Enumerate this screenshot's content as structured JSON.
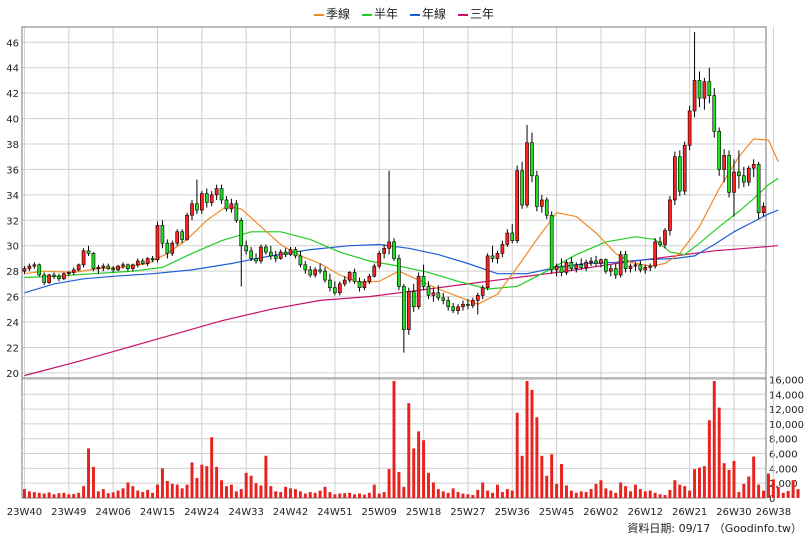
{
  "chart_data": {
    "type": "candlestick",
    "legend": {
      "placement": "top-center",
      "items": [
        {
          "name": "季線",
          "color": "#f08a24"
        },
        {
          "name": "半年",
          "color": "#22cc22"
        },
        {
          "name": "年線",
          "color": "#1f5fd6"
        },
        {
          "name": "三年",
          "color": "#c8106a"
        }
      ]
    },
    "price_axis": {
      "ylim": [
        19.6,
        47.2
      ],
      "ticks": [
        20,
        22,
        24,
        26,
        28,
        30,
        32,
        34,
        36,
        38,
        40,
        42,
        44,
        46
      ]
    },
    "volume_axis": {
      "ylim": [
        0,
        16200
      ],
      "ticks": [
        0,
        2000,
        4000,
        6000,
        8000,
        10000,
        12000,
        14000,
        16000
      ],
      "tick_labels": [
        "0",
        "2,000",
        "4,000",
        "6,000",
        "8,000",
        "10,000",
        "12,000",
        "14,000",
        "16,000"
      ]
    },
    "x_labels": [
      {
        "label": "23W40",
        "index": 0
      },
      {
        "label": "23W49",
        "index": 9
      },
      {
        "label": "24W06",
        "index": 18
      },
      {
        "label": "24W15",
        "index": 27
      },
      {
        "label": "24W24",
        "index": 36
      },
      {
        "label": "24W33",
        "index": 45
      },
      {
        "label": "24W42",
        "index": 54
      },
      {
        "label": "24W51",
        "index": 63
      },
      {
        "label": "25W09",
        "index": 72
      },
      {
        "label": "25W18",
        "index": 81
      },
      {
        "label": "25W27",
        "index": 90
      },
      {
        "label": "25W36",
        "index": 99
      },
      {
        "label": "25W45",
        "index": 108
      },
      {
        "label": "26W02",
        "index": 117
      },
      {
        "label": "26W12",
        "index": 126
      },
      {
        "label": "26W21",
        "index": 135
      },
      {
        "label": "26W30",
        "index": 144
      },
      {
        "label": "26W38",
        "index": 152
      }
    ],
    "grid": true,
    "footer": "資料日期: 09/17 （Goodinfo.tw）",
    "ohlc": [
      [
        28.0,
        28.4,
        27.8,
        28.2
      ],
      [
        28.2,
        28.6,
        28.0,
        28.4
      ],
      [
        28.4,
        28.7,
        28.2,
        28.5
      ],
      [
        28.5,
        28.6,
        27.6,
        27.7
      ],
      [
        27.7,
        27.9,
        26.9,
        27.1
      ],
      [
        27.1,
        27.8,
        27.0,
        27.7
      ],
      [
        27.7,
        27.9,
        27.4,
        27.6
      ],
      [
        27.6,
        27.8,
        27.2,
        27.4
      ],
      [
        27.4,
        27.9,
        27.3,
        27.8
      ],
      [
        27.8,
        28.0,
        27.6,
        27.9
      ],
      [
        27.9,
        28.3,
        27.7,
        28.1
      ],
      [
        28.1,
        28.6,
        28.0,
        28.5
      ],
      [
        28.5,
        29.8,
        28.3,
        29.6
      ],
      [
        29.6,
        30.0,
        29.2,
        29.4
      ],
      [
        29.4,
        29.5,
        28.0,
        28.2
      ],
      [
        28.2,
        28.5,
        27.8,
        28.3
      ],
      [
        28.3,
        28.6,
        28.0,
        28.4
      ],
      [
        28.4,
        28.6,
        28.1,
        28.2
      ],
      [
        28.2,
        28.4,
        27.9,
        28.1
      ],
      [
        28.1,
        28.5,
        28.0,
        28.4
      ],
      [
        28.4,
        28.7,
        28.2,
        28.5
      ],
      [
        28.5,
        28.6,
        28.0,
        28.2
      ],
      [
        28.2,
        28.6,
        28.0,
        28.5
      ],
      [
        28.5,
        29.0,
        28.3,
        28.8
      ],
      [
        28.8,
        29.0,
        28.5,
        28.6
      ],
      [
        28.6,
        29.1,
        28.4,
        29.0
      ],
      [
        29.0,
        29.2,
        28.7,
        28.9
      ],
      [
        28.9,
        31.9,
        28.7,
        31.6
      ],
      [
        31.6,
        32.0,
        29.8,
        30.2
      ],
      [
        30.2,
        30.5,
        29.0,
        29.4
      ],
      [
        29.4,
        30.4,
        29.2,
        30.2
      ],
      [
        30.2,
        31.3,
        30.0,
        31.1
      ],
      [
        31.1,
        31.3,
        30.2,
        30.5
      ],
      [
        30.5,
        32.6,
        30.4,
        32.4
      ],
      [
        32.4,
        33.6,
        32.0,
        33.3
      ],
      [
        33.3,
        35.2,
        32.5,
        32.8
      ],
      [
        32.8,
        34.3,
        32.5,
        34.1
      ],
      [
        34.1,
        34.5,
        33.0,
        33.4
      ],
      [
        33.4,
        34.3,
        33.1,
        34.0
      ],
      [
        34.0,
        34.8,
        33.6,
        34.5
      ],
      [
        34.5,
        34.8,
        33.3,
        33.6
      ],
      [
        33.6,
        33.9,
        32.7,
        32.9
      ],
      [
        32.9,
        33.7,
        32.6,
        33.3
      ],
      [
        33.3,
        33.6,
        31.8,
        32.0
      ],
      [
        32.0,
        32.2,
        26.8,
        30.0
      ],
      [
        30.0,
        30.4,
        29.3,
        29.6
      ],
      [
        29.6,
        29.9,
        28.8,
        29.0
      ],
      [
        29.0,
        29.4,
        28.6,
        28.8
      ],
      [
        28.8,
        30.1,
        28.6,
        29.9
      ],
      [
        29.9,
        30.1,
        29.3,
        29.5
      ],
      [
        29.5,
        30.0,
        28.9,
        29.2
      ],
      [
        29.2,
        29.6,
        28.7,
        29.0
      ],
      [
        29.0,
        29.7,
        28.9,
        29.5
      ],
      [
        29.5,
        29.8,
        29.1,
        29.3
      ],
      [
        29.3,
        29.9,
        29.2,
        29.7
      ],
      [
        29.7,
        29.9,
        29.0,
        29.2
      ],
      [
        29.2,
        29.6,
        28.3,
        28.5
      ],
      [
        28.5,
        28.8,
        27.8,
        28.1
      ],
      [
        28.1,
        28.4,
        27.5,
        27.7
      ],
      [
        27.7,
        28.3,
        27.5,
        28.1
      ],
      [
        28.1,
        28.6,
        27.8,
        28.0
      ],
      [
        28.0,
        28.3,
        27.1,
        27.3
      ],
      [
        27.3,
        27.8,
        26.4,
        26.7
      ],
      [
        26.7,
        27.2,
        26.1,
        26.3
      ],
      [
        26.3,
        27.2,
        26.1,
        27.0
      ],
      [
        27.0,
        27.6,
        26.8,
        27.3
      ],
      [
        27.3,
        28.0,
        27.1,
        27.9
      ],
      [
        27.9,
        28.2,
        27.0,
        27.2
      ],
      [
        27.2,
        27.5,
        26.4,
        26.7
      ],
      [
        26.7,
        27.4,
        26.5,
        27.2
      ],
      [
        27.2,
        27.8,
        27.0,
        27.6
      ],
      [
        27.6,
        28.6,
        27.5,
        28.4
      ],
      [
        28.4,
        29.6,
        28.2,
        29.4
      ],
      [
        29.4,
        30.1,
        29.0,
        29.8
      ],
      [
        29.8,
        35.9,
        29.3,
        30.3
      ],
      [
        30.3,
        30.6,
        28.8,
        29.0
      ],
      [
        29.0,
        29.3,
        26.5,
        26.8
      ],
      [
        26.8,
        27.0,
        21.6,
        23.4
      ],
      [
        23.4,
        26.7,
        23.0,
        26.4
      ],
      [
        26.4,
        27.0,
        24.8,
        25.2
      ],
      [
        25.2,
        27.9,
        25.0,
        27.6
      ],
      [
        27.6,
        28.5,
        26.5,
        26.8
      ],
      [
        26.8,
        27.2,
        25.8,
        26.1
      ],
      [
        26.1,
        26.7,
        25.6,
        26.3
      ],
      [
        26.3,
        26.9,
        25.7,
        25.9
      ],
      [
        25.9,
        26.3,
        25.4,
        25.7
      ],
      [
        25.7,
        26.0,
        24.9,
        25.2
      ],
      [
        25.2,
        25.5,
        24.7,
        24.9
      ],
      [
        24.9,
        25.4,
        24.6,
        25.2
      ],
      [
        25.2,
        25.7,
        24.9,
        25.4
      ],
      [
        25.4,
        25.8,
        25.0,
        25.3
      ],
      [
        25.3,
        25.9,
        25.1,
        25.7
      ],
      [
        25.7,
        26.3,
        24.6,
        26.1
      ],
      [
        26.1,
        26.9,
        25.8,
        26.7
      ],
      [
        26.7,
        29.4,
        26.5,
        29.2
      ],
      [
        29.2,
        30.0,
        28.7,
        29.0
      ],
      [
        29.0,
        29.6,
        28.6,
        29.4
      ],
      [
        29.4,
        30.4,
        29.1,
        30.1
      ],
      [
        30.1,
        31.3,
        29.9,
        31.0
      ],
      [
        31.0,
        31.7,
        30.2,
        30.4
      ],
      [
        30.4,
        36.3,
        30.2,
        35.9
      ],
      [
        35.9,
        36.6,
        32.9,
        33.2
      ],
      [
        33.2,
        39.5,
        33.0,
        38.1
      ],
      [
        38.1,
        38.9,
        35.0,
        35.5
      ],
      [
        35.5,
        35.9,
        32.7,
        33.1
      ],
      [
        33.1,
        34.0,
        32.6,
        33.6
      ],
      [
        33.6,
        33.8,
        32.1,
        32.4
      ],
      [
        32.4,
        32.7,
        27.8,
        28.1
      ],
      [
        28.1,
        28.6,
        27.6,
        28.4
      ],
      [
        28.4,
        29.0,
        27.6,
        27.9
      ],
      [
        27.9,
        28.9,
        27.7,
        28.7
      ],
      [
        28.7,
        29.1,
        28.0,
        28.2
      ],
      [
        28.2,
        28.7,
        27.9,
        28.5
      ],
      [
        28.5,
        29.0,
        28.1,
        28.3
      ],
      [
        28.3,
        28.9,
        28.0,
        28.7
      ],
      [
        28.7,
        29.1,
        28.4,
        28.8
      ],
      [
        28.8,
        29.2,
        28.4,
        28.6
      ],
      [
        28.6,
        29.0,
        28.3,
        28.9
      ],
      [
        28.9,
        29.0,
        27.8,
        28.0
      ],
      [
        28.0,
        28.5,
        27.6,
        28.2
      ],
      [
        28.2,
        28.6,
        27.4,
        27.7
      ],
      [
        27.7,
        29.6,
        27.5,
        29.3
      ],
      [
        29.3,
        29.6,
        27.9,
        28.2
      ],
      [
        28.2,
        28.6,
        27.9,
        28.4
      ],
      [
        28.4,
        28.7,
        28.0,
        28.5
      ],
      [
        28.5,
        28.8,
        27.9,
        28.1
      ],
      [
        28.1,
        28.5,
        27.8,
        28.3
      ],
      [
        28.3,
        28.6,
        28.0,
        28.4
      ],
      [
        28.4,
        30.6,
        28.2,
        30.3
      ],
      [
        30.3,
        30.7,
        29.9,
        30.1
      ],
      [
        30.1,
        31.4,
        29.8,
        31.2
      ],
      [
        31.2,
        33.9,
        30.8,
        33.6
      ],
      [
        33.6,
        37.4,
        33.2,
        37.0
      ],
      [
        37.0,
        37.5,
        33.9,
        34.3
      ],
      [
        34.3,
        38.2,
        34.0,
        37.9
      ],
      [
        37.9,
        41.0,
        37.5,
        40.6
      ],
      [
        40.6,
        46.8,
        40.1,
        43.0
      ],
      [
        43.0,
        43.7,
        40.9,
        41.6
      ],
      [
        41.6,
        43.2,
        40.7,
        42.9
      ],
      [
        42.9,
        44.0,
        41.2,
        41.8
      ],
      [
        41.8,
        42.4,
        38.5,
        39.0
      ],
      [
        39.0,
        39.3,
        35.5,
        36.0
      ],
      [
        36.0,
        37.6,
        35.0,
        37.1
      ],
      [
        37.1,
        37.5,
        33.8,
        34.2
      ],
      [
        34.2,
        36.8,
        32.3,
        35.8
      ],
      [
        35.8,
        37.5,
        34.5,
        35.5
      ],
      [
        35.5,
        36.2,
        34.6,
        35.0
      ],
      [
        35.0,
        36.3,
        34.7,
        36.1
      ],
      [
        36.1,
        36.8,
        35.4,
        36.4
      ],
      [
        36.4,
        36.6,
        32.1,
        32.6
      ],
      [
        32.6,
        33.4,
        32.3,
        33.1
      ]
    ],
    "volume": [
      1200,
      900,
      800,
      700,
      600,
      750,
      500,
      650,
      700,
      500,
      550,
      700,
      1600,
      6700,
      4200,
      900,
      1200,
      650,
      750,
      1000,
      1300,
      2100,
      1600,
      1000,
      800,
      1100,
      700,
      1800,
      4000,
      2300,
      1900,
      1800,
      1300,
      1800,
      4800,
      2700,
      4500,
      4300,
      8200,
      4200,
      2400,
      1600,
      1800,
      900,
      1200,
      3400,
      3000,
      2000,
      1700,
      5700,
      1600,
      900,
      800,
      1500,
      1300,
      1200,
      900,
      600,
      800,
      700,
      1000,
      1500,
      800,
      500,
      600,
      650,
      700,
      500,
      600,
      450,
      700,
      1800,
      600,
      800,
      3900,
      15800,
      3500,
      1500,
      12800,
      6700,
      9000,
      7800,
      3400,
      2100,
      1200,
      900,
      700,
      1300,
      800,
      600,
      500,
      400,
      1100,
      2100,
      1000,
      700,
      1800,
      800,
      1200,
      1000,
      11500,
      5700,
      15800,
      14600,
      10900,
      5700,
      3000,
      5900,
      1900,
      4600,
      1700,
      1000,
      700,
      900,
      800,
      1200,
      1900,
      2400,
      1300,
      1000,
      700,
      2100,
      1600,
      900,
      1800,
      1200,
      900,
      1000,
      700,
      500,
      400,
      1100,
      2400,
      1800,
      1600,
      1000,
      3900,
      4100,
      4300,
      10500,
      15800,
      12200,
      4700,
      3800,
      5000,
      800,
      1900,
      2900,
      5600,
      1800,
      1000,
      3300,
      2500,
      1500,
      700,
      950,
      2400,
      1200
    ],
    "ma_quarterly": [
      [
        0,
        27.8
      ],
      [
        4,
        28.0
      ],
      [
        10,
        27.9
      ],
      [
        15,
        28.2
      ],
      [
        20,
        28.3
      ],
      [
        25,
        28.6
      ],
      [
        29,
        29.4
      ],
      [
        33,
        30.5
      ],
      [
        37,
        32.0
      ],
      [
        41,
        33.1
      ],
      [
        44,
        32.9
      ],
      [
        48,
        31.5
      ],
      [
        52,
        30.1
      ],
      [
        56,
        29.2
      ],
      [
        60,
        28.6
      ],
      [
        64,
        27.7
      ],
      [
        68,
        27.1
      ],
      [
        72,
        27.2
      ],
      [
        76,
        28.0
      ],
      [
        80,
        27.3
      ],
      [
        84,
        26.6
      ],
      [
        88,
        26.0
      ],
      [
        92,
        25.4
      ],
      [
        96,
        26.2
      ],
      [
        100,
        28.3
      ],
      [
        104,
        30.5
      ],
      [
        108,
        32.6
      ],
      [
        112,
        32.3
      ],
      [
        116,
        31.0
      ],
      [
        120,
        29.4
      ],
      [
        123,
        28.7
      ],
      [
        127,
        28.4
      ],
      [
        130,
        28.6
      ],
      [
        133,
        29.4
      ],
      [
        137,
        31.5
      ],
      [
        141,
        34.5
      ],
      [
        145,
        37.0
      ],
      [
        148,
        38.4
      ],
      [
        151,
        38.3
      ],
      [
        153,
        36.6
      ]
    ],
    "ma_half_year": [
      [
        0,
        27.5
      ],
      [
        6,
        27.6
      ],
      [
        14,
        27.8
      ],
      [
        22,
        28.0
      ],
      [
        28,
        28.3
      ],
      [
        34,
        29.4
      ],
      [
        40,
        30.4
      ],
      [
        46,
        31.1
      ],
      [
        52,
        31.1
      ],
      [
        58,
        30.5
      ],
      [
        64,
        29.5
      ],
      [
        70,
        28.8
      ],
      [
        76,
        28.4
      ],
      [
        82,
        27.9
      ],
      [
        88,
        27.2
      ],
      [
        94,
        26.6
      ],
      [
        100,
        26.8
      ],
      [
        106,
        28.0
      ],
      [
        112,
        29.3
      ],
      [
        118,
        30.3
      ],
      [
        124,
        30.7
      ],
      [
        128,
        30.5
      ],
      [
        131,
        29.5
      ],
      [
        134,
        29.3
      ],
      [
        137,
        30.2
      ],
      [
        141,
        31.5
      ],
      [
        145,
        32.7
      ],
      [
        148,
        33.7
      ],
      [
        151,
        34.8
      ],
      [
        153,
        35.3
      ]
    ],
    "ma_yearly": [
      [
        0,
        26.3
      ],
      [
        6,
        27.0
      ],
      [
        12,
        27.4
      ],
      [
        18,
        27.6
      ],
      [
        26,
        27.8
      ],
      [
        34,
        28.1
      ],
      [
        42,
        28.6
      ],
      [
        50,
        29.2
      ],
      [
        58,
        29.7
      ],
      [
        66,
        30.0
      ],
      [
        72,
        30.1
      ],
      [
        78,
        29.8
      ],
      [
        84,
        29.3
      ],
      [
        90,
        28.6
      ],
      [
        96,
        27.8
      ],
      [
        102,
        27.8
      ],
      [
        108,
        28.3
      ],
      [
        114,
        28.6
      ],
      [
        120,
        28.7
      ],
      [
        126,
        28.9
      ],
      [
        132,
        29.0
      ],
      [
        136,
        29.2
      ],
      [
        140,
        30.1
      ],
      [
        144,
        31.1
      ],
      [
        148,
        31.9
      ],
      [
        151,
        32.5
      ],
      [
        153,
        32.8
      ]
    ],
    "ma_three_year": [
      [
        0,
        19.8
      ],
      [
        10,
        20.8
      ],
      [
        20,
        21.9
      ],
      [
        30,
        23.0
      ],
      [
        40,
        24.1
      ],
      [
        50,
        25.0
      ],
      [
        60,
        25.7
      ],
      [
        70,
        26.0
      ],
      [
        80,
        26.5
      ],
      [
        90,
        27.0
      ],
      [
        100,
        27.5
      ],
      [
        110,
        28.0
      ],
      [
        120,
        28.6
      ],
      [
        130,
        29.1
      ],
      [
        140,
        29.6
      ],
      [
        153,
        30.0
      ]
    ]
  }
}
